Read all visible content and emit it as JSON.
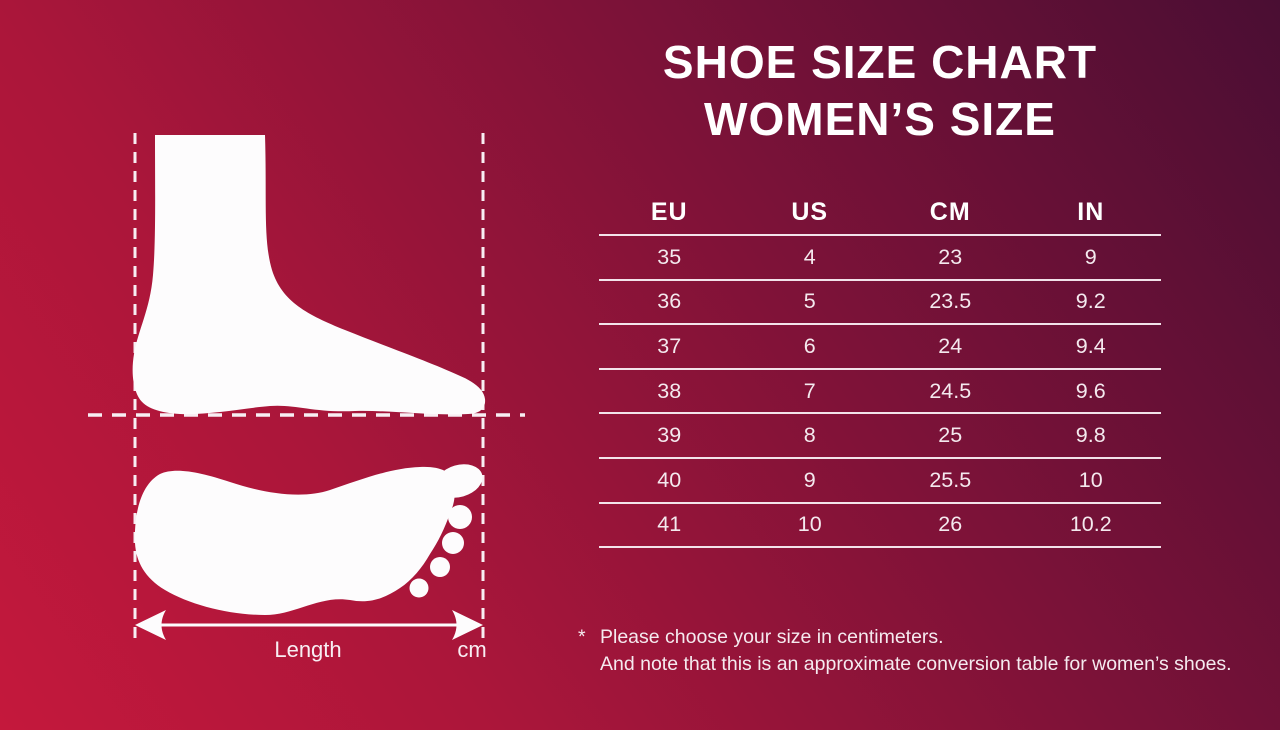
{
  "title": {
    "line1": "SHOE SIZE CHART",
    "line2": "WOMEN’S SIZE"
  },
  "table": {
    "headers": [
      "EU",
      "US",
      "CM",
      "IN"
    ],
    "rows": [
      [
        "35",
        "4",
        "23",
        "9"
      ],
      [
        "36",
        "5",
        "23.5",
        "9.2"
      ],
      [
        "37",
        "6",
        "24",
        "9.4"
      ],
      [
        "38",
        "7",
        "24.5",
        "9.6"
      ],
      [
        "39",
        "8",
        "25",
        "9.8"
      ],
      [
        "40",
        "9",
        "25.5",
        "10"
      ],
      [
        "41",
        "10",
        "26",
        "10.2"
      ]
    ]
  },
  "footnote": {
    "marker": "*",
    "line1": "Please choose your size in centimeters.",
    "line2": "And note that this is an approximate conversion table for women’s shoes."
  },
  "diagram": {
    "length_label": "Length",
    "unit_label": "cm",
    "icons": [
      "foot-side-silhouette",
      "footprint-silhouette",
      "length-arrow"
    ]
  },
  "colors": {
    "background_gradient_start": "#c4183c",
    "background_gradient_end": "#4a0e33",
    "foreground": "#ffffff",
    "table_line": "#f8eef3"
  },
  "chart_data": {
    "type": "table",
    "title": "Shoe Size Chart — Women's Size",
    "columns": [
      "EU",
      "US",
      "CM",
      "IN"
    ],
    "rows": [
      [
        35,
        4,
        23,
        9
      ],
      [
        36,
        5,
        23.5,
        9.2
      ],
      [
        37,
        6,
        24,
        9.4
      ],
      [
        38,
        7,
        24.5,
        9.6
      ],
      [
        39,
        8,
        25,
        9.8
      ],
      [
        40,
        9,
        25.5,
        10
      ],
      [
        41,
        10,
        26,
        10.2
      ]
    ],
    "notes": "Conversion table; sizes recommended to be chosen in centimeters; approximate conversion for women's shoes."
  }
}
